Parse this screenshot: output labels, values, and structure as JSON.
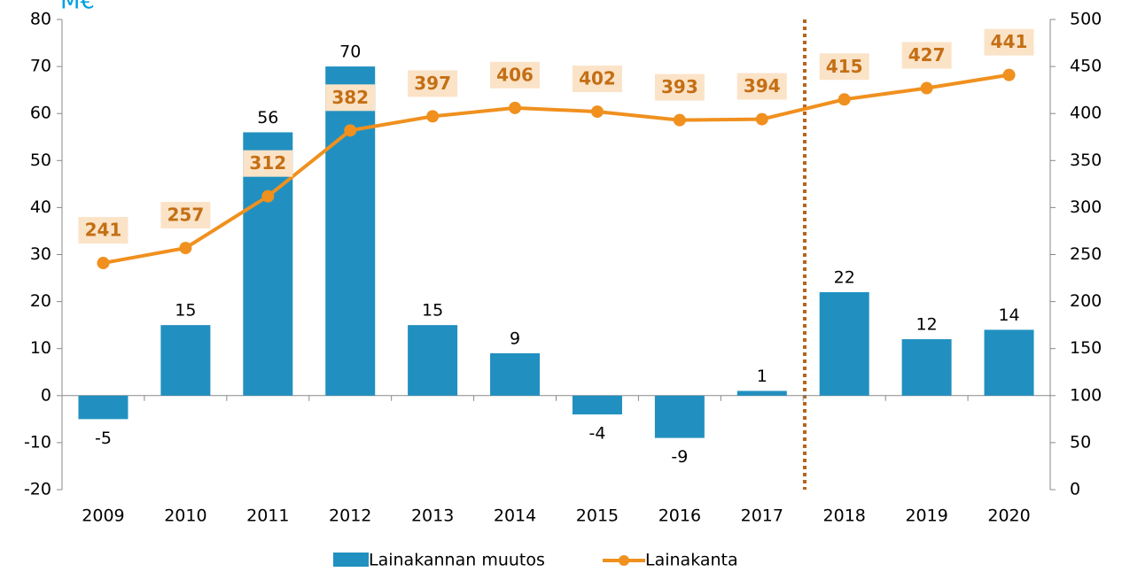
{
  "chart_data": {
    "type": "bar",
    "title": "M€",
    "categories": [
      "2009",
      "2010",
      "2011",
      "2012",
      "2013",
      "2014",
      "2015",
      "2016",
      "2017",
      "2018",
      "2019",
      "2020"
    ],
    "series": [
      {
        "name": "Lainakannan muutos",
        "type": "bar",
        "color": "#2190c0",
        "values": [
          -5,
          15,
          56,
          70,
          15,
          9,
          -4,
          -9,
          1,
          22,
          12,
          14
        ]
      },
      {
        "name": "Lainakanta",
        "type": "line",
        "axis": "y2",
        "color": "#f0901e",
        "values": [
          241,
          257,
          312,
          382,
          397,
          406,
          402,
          393,
          394,
          415,
          427,
          441
        ]
      }
    ],
    "ylim": [
      -20,
      80
    ],
    "yticks": [
      -20,
      -10,
      0,
      10,
      20,
      30,
      40,
      50,
      60,
      70,
      80
    ],
    "y2lim": [
      0,
      500
    ],
    "y2ticks": [
      0,
      50,
      100,
      150,
      200,
      250,
      300,
      350,
      400,
      450,
      500
    ],
    "grid": false,
    "legend": "bottom"
  }
}
